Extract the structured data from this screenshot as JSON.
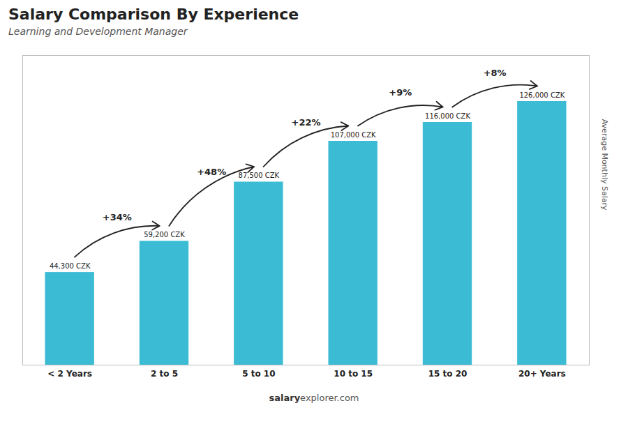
{
  "chart_data": {
    "type": "bar",
    "title": "Salary Comparison By Experience",
    "subtitle": "Learning and Development Manager",
    "ylabel": "Average Monthly Salary",
    "categories": [
      "< 2 Years",
      "2 to 5",
      "5 to 10",
      "10 to 15",
      "15 to 20",
      "20+ Years"
    ],
    "values": [
      44300,
      59200,
      87500,
      107000,
      116000,
      126000
    ],
    "value_labels": [
      "44,300 CZK",
      "59,200 CZK",
      "87,500 CZK",
      "107,000 CZK",
      "116,000 CZK",
      "126,000 CZK"
    ],
    "data_labels": true,
    "color": "#3bbcd4",
    "ylim": [
      0,
      148000
    ],
    "grid": false,
    "tick_labels": "x",
    "annotations": [
      {
        "text": "+34%",
        "from": "< 2 Years",
        "to": "2 to 5"
      },
      {
        "text": "+48%",
        "from": "2 to 5",
        "to": "5 to 10"
      },
      {
        "text": "+22%",
        "from": "5 to 10",
        "to": "10 to 15"
      },
      {
        "text": "+9%",
        "from": "10 to 15",
        "to": "15 to 20"
      },
      {
        "text": "+8%",
        "from": "15 to 20",
        "to": "20+ Years"
      }
    ],
    "caption": [
      "salary",
      "explorer.com"
    ]
  }
}
